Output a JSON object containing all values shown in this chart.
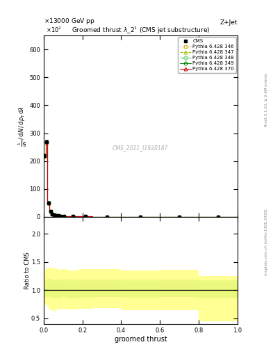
{
  "title": "Groomed thrust $\\lambda\\_2^1$ (CMS jet substructure)",
  "top_left_label": "13000 GeV pp",
  "top_right_label": "Z+Jet",
  "right_label_top": "Rivet 3.1.10, ≥ 2.6M events",
  "right_label_bottom": "mcplots.cern.ch [arXiv:1306.3436]",
  "watermark": "CMS_2021_I1920187",
  "xlabel": "groomed thrust",
  "ylabel_ratio": "Ratio to CMS",
  "ylim_main": [
    0,
    650
  ],
  "ylim_ratio": [
    0.4,
    2.3
  ],
  "yticks_main": [
    0,
    100,
    200,
    300,
    400,
    500,
    600
  ],
  "yticks_ratio": [
    0.5,
    1.0,
    1.5,
    2.0
  ],
  "xlim": [
    0,
    1
  ],
  "bin_edges": [
    0.0,
    0.01,
    0.02,
    0.03,
    0.04,
    0.05,
    0.06,
    0.07,
    0.08,
    0.09,
    0.12,
    0.18,
    0.25,
    0.4,
    0.6,
    0.8,
    1.0
  ],
  "cms_y": [
    220,
    270,
    50,
    20,
    10,
    7,
    5,
    4,
    3,
    2,
    1.5,
    1,
    0.5,
    0.3,
    0.2,
    0.1
  ],
  "cms_color": "#000000",
  "cms_marker": "s",
  "series": [
    {
      "label": "Pythia 6.428 346",
      "color": "#c8a000",
      "marker": "o",
      "linestyle": ":",
      "main_y": [
        215,
        265,
        48,
        19,
        9.5,
        6.5,
        4.8,
        3.8,
        2.8,
        1.9,
        1.4,
        0.95,
        0.48,
        0.28,
        0.19,
        0.1
      ],
      "ratio_band_lo": [
        0.75,
        0.75,
        0.7,
        0.65,
        0.65,
        0.62,
        0.67,
        0.66,
        0.64,
        0.67,
        0.66,
        0.67,
        0.68,
        0.65,
        0.65,
        0.45
      ],
      "ratio_band_hi": [
        1.35,
        1.38,
        1.4,
        1.4,
        1.4,
        1.38,
        1.38,
        1.37,
        1.35,
        1.37,
        1.35,
        1.37,
        1.37,
        1.35,
        1.36,
        1.25
      ],
      "fill_color": "#ffff80"
    },
    {
      "label": "Pythia 6.428 347",
      "color": "#a0c000",
      "marker": "^",
      "linestyle": "--",
      "main_y": [
        218,
        268,
        49,
        19.5,
        9.7,
        6.6,
        4.9,
        3.9,
        2.9,
        2.0,
        1.45,
        0.97,
        0.49,
        0.29,
        0.2,
        0.11
      ],
      "ratio_band_lo": [
        0.85,
        0.88,
        0.88,
        0.87,
        0.87,
        0.85,
        0.87,
        0.86,
        0.85,
        0.88,
        0.86,
        0.87,
        0.88,
        0.87,
        0.88,
        0.85
      ],
      "ratio_band_hi": [
        1.18,
        1.2,
        1.2,
        1.2,
        1.2,
        1.18,
        1.19,
        1.19,
        1.18,
        1.2,
        1.19,
        1.19,
        1.19,
        1.19,
        1.19,
        1.18
      ],
      "fill_color": "#80e080"
    },
    {
      "label": "Pythia 6.428 348",
      "color": "#60c060",
      "marker": "D",
      "linestyle": "--",
      "main_y": [
        220,
        270,
        50,
        20,
        10,
        7,
        5,
        4,
        3,
        2,
        1.5,
        1,
        0.5,
        0.3,
        0.2,
        0.1
      ],
      "ratio_band_lo": [
        0.9,
        0.91,
        0.91,
        0.91,
        0.91,
        0.9,
        0.91,
        0.9,
        0.9,
        0.91,
        0.9,
        0.91,
        0.91,
        0.91,
        0.91,
        0.9
      ],
      "ratio_band_hi": [
        1.1,
        1.11,
        1.11,
        1.11,
        1.11,
        1.1,
        1.11,
        1.1,
        1.1,
        1.11,
        1.1,
        1.11,
        1.11,
        1.11,
        1.11,
        1.1
      ],
      "fill_color": "#40c040"
    },
    {
      "label": "Pythia 6.428 349",
      "color": "#008000",
      "marker": "o",
      "linestyle": "-",
      "main_y": [
        221,
        271,
        51,
        20.5,
        10.2,
        7.1,
        5.1,
        4.1,
        3.1,
        2.1,
        1.55,
        1.02,
        0.51,
        0.31,
        0.21,
        0.11
      ],
      "ratio_band_lo": [
        0.92,
        0.93,
        0.93,
        0.93,
        0.93,
        0.92,
        0.93,
        0.92,
        0.92,
        0.93,
        0.92,
        0.93,
        0.93,
        0.92,
        0.93,
        0.92
      ],
      "ratio_band_hi": [
        1.12,
        1.12,
        1.12,
        1.12,
        1.12,
        1.11,
        1.12,
        1.12,
        1.12,
        1.12,
        1.12,
        1.12,
        1.12,
        1.12,
        1.12,
        1.12
      ],
      "fill_color": "#20a020"
    },
    {
      "label": "Pythia 6.428 370",
      "color": "#c00000",
      "marker": "^",
      "linestyle": "-",
      "main_y": [
        219,
        269,
        50,
        20,
        10,
        7,
        5,
        4,
        3,
        2,
        1.5,
        1,
        0.5,
        0.3,
        0.2,
        0.1
      ],
      "ratio_band_lo": [
        0.85,
        0.88,
        0.88,
        0.88,
        0.88,
        0.87,
        0.88,
        0.87,
        0.87,
        0.88,
        0.87,
        0.88,
        0.88,
        0.87,
        0.88,
        0.85
      ],
      "ratio_band_hi": [
        1.15,
        1.16,
        1.16,
        1.16,
        1.16,
        1.15,
        1.16,
        1.15,
        1.15,
        1.16,
        1.15,
        1.16,
        1.16,
        1.15,
        1.16,
        1.15
      ],
      "fill_color": "#e06060"
    }
  ]
}
